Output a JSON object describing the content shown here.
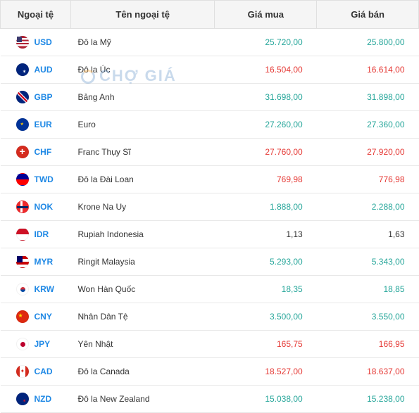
{
  "columns": {
    "code": "Ngoại tệ",
    "name": "Tên ngoại tệ",
    "buy": "Giá mua",
    "sell": "Giá bán"
  },
  "watermark": "CHỢ GIÁ",
  "colors": {
    "up": "#26a69a",
    "down": "#e53935",
    "neutral": "#333333",
    "link": "#1e88e5",
    "header_bg": "#f5f5f5",
    "border": "#e0e0e0"
  },
  "rows": [
    {
      "code": "USD",
      "flag": "flag-usd",
      "name": "Đô la Mỹ",
      "buy": "25.720,00",
      "buy_trend": "up",
      "sell": "25.800,00",
      "sell_trend": "up"
    },
    {
      "code": "AUD",
      "flag": "flag-aud",
      "name": "Đô la Úc",
      "buy": "16.504,00",
      "buy_trend": "down",
      "sell": "16.614,00",
      "sell_trend": "down"
    },
    {
      "code": "GBP",
      "flag": "flag-gbp",
      "name": "Bảng Anh",
      "buy": "31.698,00",
      "buy_trend": "up",
      "sell": "31.898,00",
      "sell_trend": "up"
    },
    {
      "code": "EUR",
      "flag": "flag-eur",
      "name": "Euro",
      "buy": "27.260,00",
      "buy_trend": "up",
      "sell": "27.360,00",
      "sell_trend": "up"
    },
    {
      "code": "CHF",
      "flag": "flag-chf",
      "name": "Franc Thụy Sĩ",
      "buy": "27.760,00",
      "buy_trend": "down",
      "sell": "27.920,00",
      "sell_trend": "down"
    },
    {
      "code": "TWD",
      "flag": "flag-twd",
      "name": "Đô la Đài Loan",
      "buy": "769,98",
      "buy_trend": "down",
      "sell": "776,98",
      "sell_trend": "down"
    },
    {
      "code": "NOK",
      "flag": "flag-nok",
      "name": "Krone Na Uy",
      "buy": "1.888,00",
      "buy_trend": "up",
      "sell": "2.288,00",
      "sell_trend": "up"
    },
    {
      "code": "IDR",
      "flag": "flag-idr",
      "name": "Rupiah Indonesia",
      "buy": "1,13",
      "buy_trend": "neutral",
      "sell": "1,63",
      "sell_trend": "neutral"
    },
    {
      "code": "MYR",
      "flag": "flag-myr",
      "name": "Ringit Malaysia",
      "buy": "5.293,00",
      "buy_trend": "up",
      "sell": "5.343,00",
      "sell_trend": "up"
    },
    {
      "code": "KRW",
      "flag": "flag-krw",
      "name": "Won Hàn Quốc",
      "buy": "18,35",
      "buy_trend": "up",
      "sell": "18,85",
      "sell_trend": "up"
    },
    {
      "code": "CNY",
      "flag": "flag-cny",
      "name": "Nhân Dân Tệ",
      "buy": "3.500,00",
      "buy_trend": "up",
      "sell": "3.550,00",
      "sell_trend": "up"
    },
    {
      "code": "JPY",
      "flag": "flag-jpy",
      "name": "Yên Nhật",
      "buy": "165,75",
      "buy_trend": "down",
      "sell": "166,95",
      "sell_trend": "down"
    },
    {
      "code": "CAD",
      "flag": "flag-cad",
      "name": "Đô la Canada",
      "buy": "18.527,00",
      "buy_trend": "down",
      "sell": "18.637,00",
      "sell_trend": "down"
    },
    {
      "code": "NZD",
      "flag": "flag-nzd",
      "name": "Đô la New Zealand",
      "buy": "15.038,00",
      "buy_trend": "up",
      "sell": "15.238,00",
      "sell_trend": "up"
    }
  ]
}
